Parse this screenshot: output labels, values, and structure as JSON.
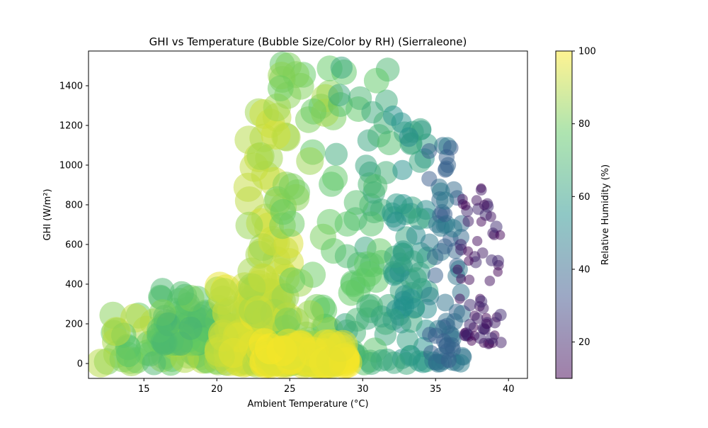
{
  "chart_data": {
    "type": "scatter",
    "title": "GHI vs Temperature (Bubble Size/Color by RH) (Sierraleone)",
    "xlabel": "Ambient Temperature (°C)",
    "ylabel": "GHI (W/m²)",
    "xlim": [
      11.2,
      41.3
    ],
    "ylim": [
      -75,
      1575
    ],
    "x_ticks": [
      15,
      20,
      25,
      30,
      35,
      40
    ],
    "y_ticks": [
      0,
      200,
      400,
      600,
      800,
      1000,
      1200,
      1400
    ],
    "grid": false,
    "legend": "none",
    "size_encoding": "Relative Humidity (%)",
    "color_encoding": "Relative Humidity (%)",
    "colormap": "viridis",
    "marker_alpha": 0.5,
    "colorbar": {
      "label": "Relative Humidity (%)",
      "range": [
        10,
        100
      ],
      "ticks": [
        20,
        40,
        60,
        80,
        100
      ],
      "position": "right"
    },
    "clusters": [
      {
        "x": [
          12,
          22
        ],
        "y": [
          0,
          250
        ],
        "rh": [
          70,
          92
        ]
      },
      {
        "x": [
          16,
          21
        ],
        "y": [
          100,
          380
        ],
        "rh": [
          68,
          82
        ]
      },
      {
        "x": [
          20,
          24
        ],
        "y": [
          0,
          400
        ],
        "rh": [
          88,
          98
        ]
      },
      {
        "x": [
          22,
          25
        ],
        "y": [
          0,
          1300
        ],
        "rh": [
          85,
          95
        ]
      },
      {
        "x": [
          24,
          28
        ],
        "y": [
          0,
          1550
        ],
        "rh": [
          75,
          88
        ]
      },
      {
        "x": [
          28,
          32
        ],
        "y": [
          0,
          1500
        ],
        "rh": [
          62,
          78
        ]
      },
      {
        "x": [
          32,
          34.5
        ],
        "y": [
          0,
          1250
        ],
        "rh": [
          52,
          65
        ]
      },
      {
        "x": [
          34.5,
          37
        ],
        "y": [
          0,
          1100
        ],
        "rh": [
          35,
          48
        ]
      },
      {
        "x": [
          36.5,
          39.5
        ],
        "y": [
          100,
          900
        ],
        "rh": [
          10,
          22
        ]
      },
      {
        "x": [
          23,
          29
        ],
        "y": [
          0,
          100
        ],
        "rh": [
          95,
          100
        ]
      }
    ]
  }
}
